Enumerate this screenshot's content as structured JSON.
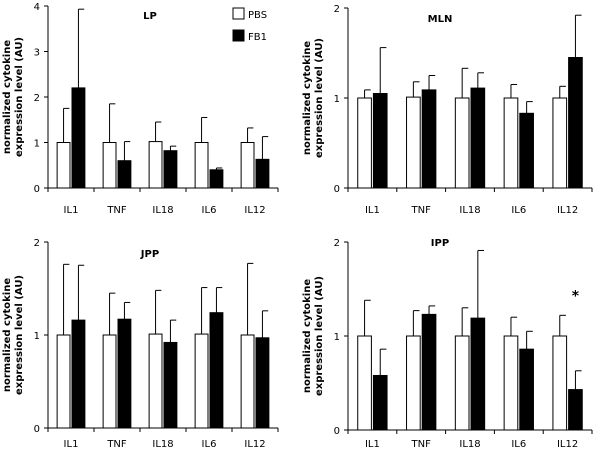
{
  "chart_data": [
    {
      "type": "bar",
      "title": "LP",
      "ylabel": "normalized cytokine expression level (AU)",
      "ylim": [
        0,
        4
      ],
      "yticks": [
        "0",
        "1",
        "2",
        "3",
        "4"
      ],
      "categories": [
        "IL1",
        "TNF",
        "IL18",
        "IL6",
        "IL12"
      ],
      "series": [
        {
          "name": "PBS",
          "color": "#ffffff",
          "values": [
            1.0,
            1.0,
            1.02,
            1.0,
            1.0
          ],
          "errors": [
            0.75,
            0.85,
            0.43,
            0.55,
            0.32
          ]
        },
        {
          "name": "FB1",
          "color": "#000000",
          "values": [
            2.2,
            0.6,
            0.82,
            0.4,
            0.63
          ],
          "errors": [
            1.73,
            0.42,
            0.1,
            0.04,
            0.5
          ]
        }
      ],
      "annotations": []
    },
    {
      "type": "bar",
      "title": "MLN",
      "ylabel": "",
      "ylim": [
        0,
        2
      ],
      "yticks": [
        "0",
        "1",
        "2"
      ],
      "categories": [
        "IL1",
        "TNF",
        "IL18",
        "IL6",
        "IL12"
      ],
      "series": [
        {
          "name": "PBS",
          "color": "#ffffff",
          "values": [
            1.0,
            1.01,
            1.0,
            1.0,
            1.0
          ],
          "errors": [
            0.09,
            0.17,
            0.33,
            0.15,
            0.13
          ]
        },
        {
          "name": "FB1",
          "color": "#000000",
          "values": [
            1.05,
            1.09,
            1.11,
            0.83,
            1.45
          ],
          "errors": [
            0.51,
            0.16,
            0.17,
            0.13,
            0.47
          ]
        }
      ],
      "annotations": []
    },
    {
      "type": "bar",
      "title": "JPP",
      "ylabel": "normalized cytokine expression level (AU)",
      "ylim": [
        0,
        2
      ],
      "yticks": [
        "0",
        "1",
        "2"
      ],
      "categories": [
        "IL1",
        "TNF",
        "IL18",
        "IL6",
        "IL12"
      ],
      "series": [
        {
          "name": "PBS",
          "color": "#ffffff",
          "values": [
            1.0,
            1.0,
            1.01,
            1.01,
            1.0
          ],
          "errors": [
            0.76,
            0.45,
            0.47,
            0.5,
            0.77
          ]
        },
        {
          "name": "FB1",
          "color": "#000000",
          "values": [
            1.16,
            1.17,
            0.92,
            1.24,
            0.97
          ],
          "errors": [
            0.59,
            0.18,
            0.24,
            0.27,
            0.29
          ]
        }
      ],
      "annotations": []
    },
    {
      "type": "bar",
      "title": "IPP",
      "ylabel": "",
      "ylim": [
        0,
        2
      ],
      "yticks": [
        "0",
        "1",
        "2"
      ],
      "categories": [
        "IL1",
        "TNF",
        "IL18",
        "IL6",
        "IL12"
      ],
      "series": [
        {
          "name": "PBS",
          "color": "#ffffff",
          "values": [
            1.0,
            1.0,
            1.0,
            1.0,
            1.0
          ],
          "errors": [
            0.38,
            0.27,
            0.3,
            0.2,
            0.22
          ]
        },
        {
          "name": "FB1",
          "color": "#000000",
          "values": [
            0.58,
            1.23,
            1.19,
            0.86,
            0.43
          ],
          "errors": [
            0.28,
            0.09,
            0.72,
            0.19,
            0.2
          ]
        }
      ],
      "annotations": [
        {
          "text": "*",
          "category": "IL12"
        }
      ]
    }
  ]
}
